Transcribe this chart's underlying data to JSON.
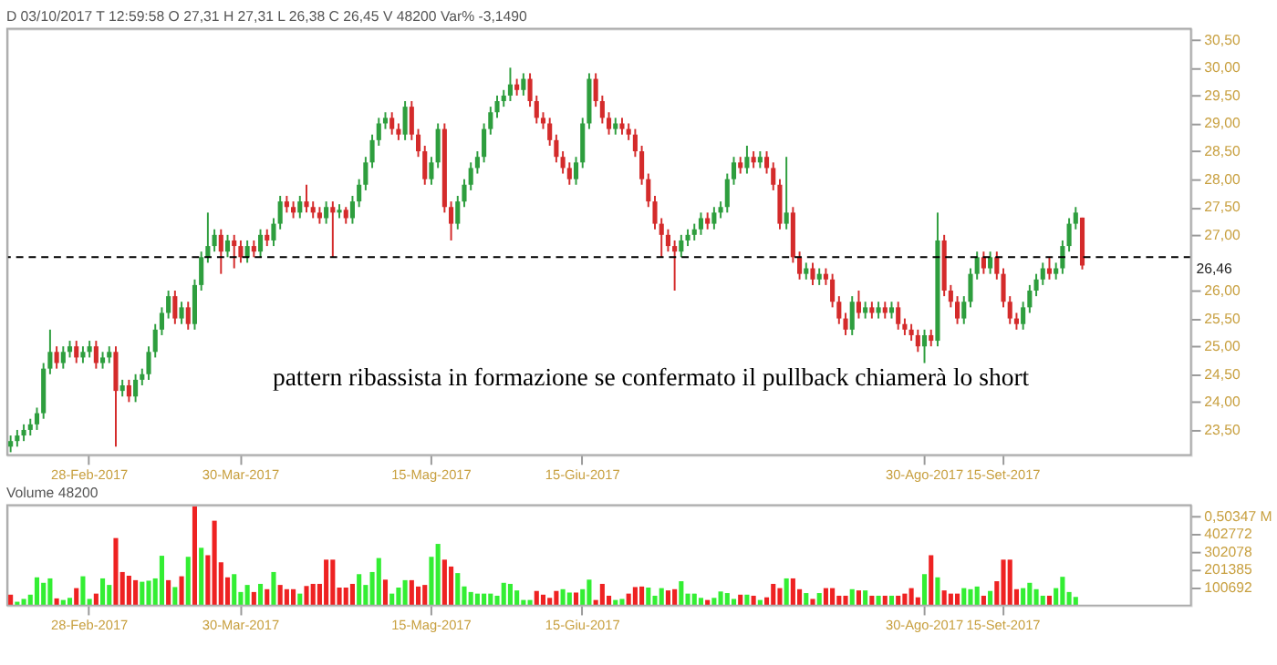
{
  "chart_data": [
    {
      "type": "candlestick",
      "subtitle": "D 03/10/2017   T 12:59:58   O 27,31   H 27,31   L 26,38   C 26,45   V 48200   Var% -3,1490",
      "categories": [
        null,
        null,
        null,
        null,
        null,
        null,
        null,
        null,
        null,
        null,
        null,
        null,
        "28-Feb-2017",
        null,
        null,
        null,
        null,
        null,
        null,
        null,
        null,
        null,
        null,
        null,
        null,
        null,
        null,
        null,
        null,
        null,
        null,
        null,
        null,
        null,
        null,
        "30-Mar-2017",
        null,
        null,
        null,
        null,
        null,
        null,
        null,
        null,
        null,
        null,
        null,
        null,
        null,
        null,
        null,
        null,
        null,
        null,
        null,
        null,
        null,
        null,
        null,
        null,
        null,
        null,
        null,
        null,
        "15-Mag-2017",
        null,
        null,
        null,
        null,
        null,
        null,
        null,
        null,
        null,
        null,
        null,
        null,
        null,
        null,
        null,
        null,
        null,
        null,
        null,
        null,
        null,
        null,
        "15-Giu-2017",
        null,
        null,
        null,
        null,
        null,
        null,
        null,
        null,
        null,
        null,
        null,
        null,
        null,
        null,
        null,
        null,
        null,
        null,
        null,
        null,
        null,
        null,
        null,
        null,
        null,
        null,
        null,
        null,
        null,
        null,
        null,
        null,
        null,
        null,
        null,
        null,
        null,
        null,
        null,
        null,
        null,
        null,
        null,
        null,
        null,
        null,
        null,
        null,
        null,
        null,
        null,
        "30-Ago-2017",
        null,
        null,
        null,
        null,
        null,
        null,
        null,
        null,
        null,
        null,
        null,
        "15-Set-2017",
        null,
        null,
        null,
        null,
        null,
        null,
        null,
        null,
        null,
        null,
        null,
        null,
        null,
        null,
        null,
        null,
        null,
        null,
        null,
        null,
        null,
        null,
        null,
        null,
        null,
        null,
        null,
        null
      ],
      "ohlc": [
        [
          23.2,
          23.4,
          23.1,
          23.3
        ],
        [
          23.3,
          23.5,
          23.2,
          23.4
        ],
        [
          23.4,
          23.6,
          23.3,
          23.5
        ],
        [
          23.5,
          23.7,
          23.4,
          23.6
        ],
        [
          23.6,
          23.9,
          23.5,
          23.8
        ],
        [
          23.8,
          24.7,
          23.7,
          24.6
        ],
        [
          24.6,
          25.3,
          24.5,
          24.9
        ],
        [
          24.9,
          25.0,
          24.6,
          24.7
        ],
        [
          24.7,
          25.0,
          24.6,
          24.9
        ],
        [
          24.9,
          25.1,
          24.8,
          25.0
        ],
        [
          25.0,
          25.1,
          24.7,
          24.8
        ],
        [
          24.8,
          25.0,
          24.7,
          24.9
        ],
        [
          24.9,
          25.1,
          24.8,
          25.0
        ],
        [
          25.0,
          25.1,
          24.6,
          24.7
        ],
        [
          24.7,
          24.9,
          24.6,
          24.8
        ],
        [
          24.8,
          25.0,
          24.7,
          24.9
        ],
        [
          24.9,
          25.0,
          23.2,
          24.2
        ],
        [
          24.2,
          24.4,
          24.1,
          24.3
        ],
        [
          24.3,
          24.4,
          24.0,
          24.1
        ],
        [
          24.1,
          24.5,
          24.0,
          24.4
        ],
        [
          24.4,
          24.6,
          24.3,
          24.5
        ],
        [
          24.5,
          25.0,
          24.4,
          24.9
        ],
        [
          24.9,
          25.4,
          24.8,
          25.3
        ],
        [
          25.3,
          25.7,
          25.2,
          25.6
        ],
        [
          25.6,
          26.0,
          25.5,
          25.9
        ],
        [
          25.9,
          26.0,
          25.4,
          25.5
        ],
        [
          25.5,
          25.8,
          25.4,
          25.7
        ],
        [
          25.7,
          25.8,
          25.3,
          25.4
        ],
        [
          25.4,
          26.2,
          25.3,
          26.1
        ],
        [
          26.1,
          26.7,
          26.0,
          26.6
        ],
        [
          26.6,
          27.4,
          26.5,
          26.8
        ],
        [
          26.8,
          27.1,
          26.7,
          27.0
        ],
        [
          27.0,
          27.1,
          26.3,
          26.7
        ],
        [
          26.7,
          27.0,
          26.6,
          26.9
        ],
        [
          26.9,
          27.0,
          26.4,
          26.8
        ],
        [
          26.8,
          26.9,
          26.5,
          26.6
        ],
        [
          26.6,
          26.9,
          26.5,
          26.8
        ],
        [
          26.8,
          26.9,
          26.6,
          26.7
        ],
        [
          26.7,
          27.1,
          26.6,
          27.0
        ],
        [
          27.0,
          27.1,
          26.8,
          26.9
        ],
        [
          26.9,
          27.3,
          26.8,
          27.2
        ],
        [
          27.2,
          27.7,
          27.1,
          27.6
        ],
        [
          27.6,
          27.7,
          27.4,
          27.5
        ],
        [
          27.5,
          27.6,
          27.3,
          27.4
        ],
        [
          27.4,
          27.7,
          27.3,
          27.6
        ],
        [
          27.6,
          27.9,
          27.4,
          27.5
        ],
        [
          27.5,
          27.6,
          27.3,
          27.4
        ],
        [
          27.4,
          27.5,
          27.2,
          27.3
        ],
        [
          27.3,
          27.6,
          27.2,
          27.5
        ],
        [
          27.5,
          27.6,
          26.6,
          27.4
        ],
        [
          27.4,
          27.55,
          27.3,
          27.45
        ],
        [
          27.45,
          27.5,
          27.2,
          27.3
        ],
        [
          27.3,
          27.7,
          27.2,
          27.6
        ],
        [
          27.6,
          28.0,
          27.5,
          27.9
        ],
        [
          27.9,
          28.4,
          27.8,
          28.3
        ],
        [
          28.3,
          28.8,
          28.2,
          28.7
        ],
        [
          28.7,
          29.1,
          28.6,
          29.0
        ],
        [
          29.0,
          29.2,
          28.9,
          29.1
        ],
        [
          29.1,
          29.2,
          28.8,
          28.9
        ],
        [
          28.9,
          29.0,
          28.7,
          28.8
        ],
        [
          28.8,
          29.4,
          28.7,
          29.3
        ],
        [
          29.3,
          29.4,
          28.7,
          28.8
        ],
        [
          28.8,
          28.9,
          28.4,
          28.5
        ],
        [
          28.5,
          28.6,
          27.9,
          28.0
        ],
        [
          28.0,
          28.4,
          27.9,
          28.3
        ],
        [
          28.3,
          29.0,
          28.2,
          28.9
        ],
        [
          28.9,
          29.0,
          27.4,
          27.5
        ],
        [
          27.5,
          27.6,
          26.9,
          27.2
        ],
        [
          27.2,
          27.7,
          27.1,
          27.6
        ],
        [
          27.6,
          28.0,
          27.5,
          27.9
        ],
        [
          27.9,
          28.3,
          27.8,
          28.2
        ],
        [
          28.2,
          28.5,
          28.1,
          28.4
        ],
        [
          28.4,
          29.0,
          28.3,
          28.9
        ],
        [
          28.9,
          29.3,
          28.8,
          29.2
        ],
        [
          29.2,
          29.5,
          29.1,
          29.4
        ],
        [
          29.4,
          29.6,
          29.3,
          29.5
        ],
        [
          29.5,
          30.0,
          29.4,
          29.7
        ],
        [
          29.7,
          29.8,
          29.5,
          29.6
        ],
        [
          29.6,
          29.9,
          29.5,
          29.8
        ],
        [
          29.8,
          29.9,
          29.3,
          29.4
        ],
        [
          29.4,
          29.5,
          29.0,
          29.1
        ],
        [
          29.1,
          29.2,
          28.9,
          29.0
        ],
        [
          29.0,
          29.1,
          28.6,
          28.7
        ],
        [
          28.7,
          28.8,
          28.3,
          28.4
        ],
        [
          28.4,
          28.5,
          28.1,
          28.2
        ],
        [
          28.2,
          28.3,
          27.9,
          28.0
        ],
        [
          28.0,
          28.4,
          27.9,
          28.3
        ],
        [
          28.3,
          29.1,
          28.2,
          29.0
        ],
        [
          29.0,
          29.9,
          28.9,
          29.8
        ],
        [
          29.8,
          29.9,
          29.3,
          29.4
        ],
        [
          29.4,
          29.5,
          29.0,
          29.1
        ],
        [
          29.1,
          29.2,
          28.8,
          28.9
        ],
        [
          28.9,
          29.1,
          28.8,
          29.0
        ],
        [
          29.0,
          29.1,
          28.8,
          28.9
        ],
        [
          28.9,
          29.0,
          28.7,
          28.8
        ],
        [
          28.8,
          28.9,
          28.4,
          28.5
        ],
        [
          28.5,
          28.6,
          27.9,
          28.0
        ],
        [
          28.0,
          28.1,
          27.5,
          27.6
        ],
        [
          27.6,
          27.7,
          27.1,
          27.2
        ],
        [
          27.2,
          27.3,
          26.6,
          27.0
        ],
        [
          27.0,
          27.1,
          26.7,
          26.8
        ],
        [
          26.8,
          26.9,
          26.0,
          26.7
        ],
        [
          26.7,
          27.0,
          26.6,
          26.9
        ],
        [
          26.9,
          27.1,
          26.8,
          27.0
        ],
        [
          27.0,
          27.2,
          26.9,
          27.1
        ],
        [
          27.1,
          27.4,
          27.0,
          27.3
        ],
        [
          27.3,
          27.4,
          27.1,
          27.2
        ],
        [
          27.2,
          27.5,
          27.1,
          27.4
        ],
        [
          27.4,
          27.6,
          27.3,
          27.5
        ],
        [
          27.5,
          28.1,
          27.4,
          28.0
        ],
        [
          28.0,
          28.4,
          27.9,
          28.3
        ],
        [
          28.3,
          28.4,
          28.1,
          28.2
        ],
        [
          28.2,
          28.6,
          28.1,
          28.4
        ],
        [
          28.4,
          28.5,
          28.2,
          28.3
        ],
        [
          28.3,
          28.5,
          28.2,
          28.4
        ],
        [
          28.4,
          28.5,
          28.1,
          28.2
        ],
        [
          28.2,
          28.3,
          27.8,
          27.9
        ],
        [
          27.9,
          28.0,
          27.1,
          27.2
        ],
        [
          27.2,
          28.4,
          27.1,
          27.4
        ],
        [
          27.4,
          27.5,
          26.5,
          26.6
        ],
        [
          26.6,
          26.7,
          26.2,
          26.3
        ],
        [
          26.3,
          26.5,
          26.2,
          26.4
        ],
        [
          26.4,
          26.5,
          26.1,
          26.2
        ],
        [
          26.2,
          26.4,
          26.1,
          26.3
        ],
        [
          26.3,
          26.4,
          26.1,
          26.2
        ],
        [
          26.2,
          26.3,
          25.7,
          25.8
        ],
        [
          25.8,
          25.9,
          25.4,
          25.5
        ],
        [
          25.5,
          25.6,
          25.2,
          25.3
        ],
        [
          25.3,
          25.9,
          25.2,
          25.8
        ],
        [
          25.8,
          26.0,
          25.5,
          25.6
        ],
        [
          25.6,
          25.8,
          25.5,
          25.7
        ],
        [
          25.7,
          25.8,
          25.5,
          25.6
        ],
        [
          25.6,
          25.8,
          25.5,
          25.7
        ],
        [
          25.7,
          25.8,
          25.5,
          25.6
        ],
        [
          25.6,
          25.8,
          25.5,
          25.7
        ],
        [
          25.7,
          25.8,
          25.3,
          25.4
        ],
        [
          25.4,
          25.5,
          25.2,
          25.3
        ],
        [
          25.3,
          25.4,
          25.1,
          25.2
        ],
        [
          25.2,
          25.3,
          24.9,
          25.0
        ],
        [
          25.0,
          25.3,
          24.7,
          25.2
        ],
        [
          25.2,
          25.3,
          25.0,
          25.1
        ],
        [
          25.1,
          27.4,
          25.0,
          26.9
        ],
        [
          26.9,
          27.0,
          25.9,
          26.0
        ],
        [
          26.0,
          26.1,
          25.7,
          25.8
        ],
        [
          25.8,
          25.9,
          25.4,
          25.5
        ],
        [
          25.5,
          25.9,
          25.4,
          25.8
        ],
        [
          25.8,
          26.4,
          25.7,
          26.3
        ],
        [
          26.3,
          26.7,
          26.2,
          26.6
        ],
        [
          26.6,
          26.7,
          26.3,
          26.4
        ],
        [
          26.4,
          26.7,
          26.3,
          26.6
        ],
        [
          26.6,
          26.7,
          26.2,
          26.3
        ],
        [
          26.3,
          26.4,
          25.7,
          25.8
        ],
        [
          25.8,
          25.9,
          25.4,
          25.5
        ],
        [
          25.5,
          25.6,
          25.3,
          25.4
        ],
        [
          25.4,
          25.8,
          25.3,
          25.7
        ],
        [
          25.7,
          26.1,
          25.6,
          26.0
        ],
        [
          26.0,
          26.3,
          25.9,
          26.2
        ],
        [
          26.2,
          26.5,
          26.1,
          26.4
        ],
        [
          26.4,
          26.6,
          26.2,
          26.3
        ],
        [
          26.3,
          26.5,
          26.2,
          26.4
        ],
        [
          26.4,
          26.9,
          26.3,
          26.8
        ],
        [
          26.8,
          27.3,
          26.7,
          27.2
        ],
        [
          27.2,
          27.5,
          27.1,
          27.4
        ],
        [
          27.31,
          27.31,
          26.38,
          26.45
        ],
        null,
        null,
        null,
        null,
        null,
        null,
        null,
        null,
        null,
        null,
        null,
        null,
        null,
        null,
        null,
        null
      ],
      "colors": [
        "#2e9e3e",
        "#2e9e3e",
        "#2e9e3e",
        "#2e9e3e",
        "#2e9e3e",
        "#2e9e3e",
        "#2e9e3e",
        "#d42b2b",
        "#2e9e3e",
        "#2e9e3e",
        "#d42b2b",
        "#2e9e3e",
        "#2e9e3e",
        "#d42b2b",
        "#2e9e3e",
        "#2e9e3e",
        "#d42b2b",
        "#2e9e3e",
        "#d42b2b",
        "#2e9e3e",
        "#2e9e3e",
        "#2e9e3e",
        "#2e9e3e",
        "#2e9e3e",
        "#2e9e3e",
        "#d42b2b",
        "#2e9e3e",
        "#d42b2b",
        "#2e9e3e",
        "#2e9e3e",
        "#2e9e3e",
        "#2e9e3e",
        "#d42b2b",
        "#2e9e3e",
        "#d42b2b",
        "#d42b2b",
        "#2e9e3e",
        "#d42b2b",
        "#2e9e3e",
        "#d42b2b",
        "#2e9e3e",
        "#2e9e3e",
        "#d42b2b",
        "#d42b2b",
        "#2e9e3e",
        "#d42b2b",
        "#d42b2b",
        "#d42b2b",
        "#2e9e3e",
        "#d42b2b",
        "#2e9e3e",
        "#d42b2b",
        "#2e9e3e",
        "#2e9e3e",
        "#2e9e3e",
        "#2e9e3e",
        "#2e9e3e",
        "#2e9e3e",
        "#d42b2b",
        "#d42b2b",
        "#2e9e3e",
        "#d42b2b",
        "#d42b2b",
        "#d42b2b",
        "#2e9e3e",
        "#2e9e3e",
        "#d42b2b",
        "#d42b2b",
        "#2e9e3e",
        "#2e9e3e",
        "#2e9e3e",
        "#2e9e3e",
        "#2e9e3e",
        "#2e9e3e",
        "#2e9e3e",
        "#2e9e3e",
        "#2e9e3e",
        "#d42b2b",
        "#2e9e3e",
        "#d42b2b",
        "#d42b2b",
        "#d42b2b",
        "#d42b2b",
        "#d42b2b",
        "#d42b2b",
        "#d42b2b",
        "#2e9e3e",
        "#2e9e3e",
        "#2e9e3e",
        "#d42b2b",
        "#d42b2b",
        "#d42b2b",
        "#2e9e3e",
        "#d42b2b",
        "#d42b2b",
        "#d42b2b",
        "#d42b2b",
        "#d42b2b",
        "#d42b2b",
        "#d42b2b",
        "#d42b2b",
        "#d42b2b",
        "#2e9e3e",
        "#2e9e3e",
        "#2e9e3e",
        "#2e9e3e",
        "#d42b2b",
        "#2e9e3e",
        "#2e9e3e",
        "#2e9e3e",
        "#2e9e3e",
        "#d42b2b",
        "#2e9e3e",
        "#d42b2b",
        "#2e9e3e",
        "#d42b2b",
        "#d42b2b",
        "#d42b2b",
        "#2e9e3e",
        "#d42b2b",
        "#d42b2b",
        "#2e9e3e",
        "#d42b2b",
        "#2e9e3e",
        "#d42b2b",
        "#d42b2b",
        "#d42b2b",
        "#d42b2b",
        "#2e9e3e",
        "#d42b2b",
        "#2e9e3e",
        "#d42b2b",
        "#2e9e3e",
        "#d42b2b",
        "#2e9e3e",
        "#d42b2b",
        "#d42b2b",
        "#d42b2b",
        "#d42b2b",
        "#2e9e3e",
        "#d42b2b",
        "#2e9e3e",
        "#d42b2b",
        "#d42b2b",
        "#d42b2b",
        "#2e9e3e",
        "#2e9e3e",
        "#2e9e3e",
        "#d42b2b",
        "#2e9e3e",
        "#d42b2b",
        "#d42b2b",
        "#d42b2b",
        "#d42b2b",
        "#2e9e3e",
        "#2e9e3e",
        "#2e9e3e",
        "#2e9e3e",
        "#d42b2b",
        "#2e9e3e",
        "#2e9e3e",
        "#2e9e3e",
        "#2e9e3e",
        "#d42b2b",
        null,
        null,
        null,
        null,
        null,
        null,
        null,
        null,
        null,
        null,
        null,
        null,
        null,
        null,
        null,
        null
      ],
      "ylim": [
        23.05,
        30.7
      ],
      "yticks": [
        {
          "value": 23.5,
          "label": "23,50"
        },
        {
          "value": 24.0,
          "label": "24,00"
        },
        {
          "value": 24.5,
          "label": "24,50"
        },
        {
          "value": 25.0,
          "label": "25,00"
        },
        {
          "value": 25.5,
          "label": "25,50"
        },
        {
          "value": 26.0,
          "label": "26,00"
        },
        {
          "value": 27.0,
          "label": "27,00"
        },
        {
          "value": 27.5,
          "label": "27,50"
        },
        {
          "value": 28.0,
          "label": "28,00"
        },
        {
          "value": 28.5,
          "label": "28,50"
        },
        {
          "value": 29.0,
          "label": "29,00"
        },
        {
          "value": 29.5,
          "label": "29,50"
        },
        {
          "value": 30.0,
          "label": "30,00"
        },
        {
          "value": 30.5,
          "label": "30,50"
        }
      ],
      "ref_lines": [
        {
          "axis": "y",
          "value": 26.6,
          "color": "#000000",
          "line_style": "dashed"
        }
      ],
      "annotations": [
        "pattern ribassista in formazione se confermato il pullback chiamerà lo short",
        "26,46"
      ],
      "grid": false
    },
    {
      "type": "bar",
      "annotations": [
        "Volume",
        "48200"
      ],
      "categories": [
        null,
        null,
        null,
        null,
        null,
        null,
        null,
        null,
        null,
        null,
        null,
        null,
        "28-Feb-2017",
        null,
        null,
        null,
        null,
        null,
        null,
        null,
        null,
        null,
        null,
        null,
        null,
        null,
        null,
        null,
        null,
        null,
        null,
        null,
        null,
        null,
        null,
        "30-Mar-2017",
        null,
        null,
        null,
        null,
        null,
        null,
        null,
        null,
        null,
        null,
        null,
        null,
        null,
        null,
        null,
        null,
        null,
        null,
        null,
        null,
        null,
        null,
        null,
        null,
        null,
        null,
        null,
        null,
        "15-Mag-2017",
        null,
        null,
        null,
        null,
        null,
        null,
        null,
        null,
        null,
        null,
        null,
        null,
        null,
        null,
        null,
        null,
        null,
        null,
        null,
        null,
        null,
        null,
        "15-Giu-2017",
        null,
        null,
        null,
        null,
        null,
        null,
        null,
        null,
        null,
        null,
        null,
        null,
        null,
        null,
        null,
        null,
        null,
        null,
        null,
        null,
        null,
        null,
        null,
        null,
        null,
        null,
        null,
        null,
        null,
        null,
        null,
        null,
        null,
        null,
        null,
        null,
        null,
        null,
        null,
        null,
        null,
        null,
        null,
        null,
        null,
        null,
        null,
        null,
        null,
        null,
        null,
        "30-Ago-2017",
        null,
        null,
        null,
        null,
        null,
        null,
        null,
        null,
        null,
        null,
        null,
        "15-Set-2017",
        null,
        null,
        null,
        null,
        null,
        null,
        null,
        null,
        null,
        null,
        null,
        null,
        null,
        null,
        null,
        null,
        null,
        null,
        null,
        null,
        null,
        null,
        null,
        null,
        null,
        null,
        null,
        null
      ],
      "values": [
        61000,
        21000,
        37000,
        61000,
        159000,
        128000,
        153000,
        40000,
        31000,
        43000,
        98000,
        165000,
        37000,
        67000,
        153000,
        116000,
        381000,
        189000,
        168000,
        143000,
        134000,
        140000,
        153000,
        281000,
        143000,
        104000,
        165000,
        275000,
        560000,
        326000,
        284000,
        479000,
        244000,
        159000,
        177000,
        76000,
        116000,
        76000,
        122000,
        92000,
        189000,
        116000,
        92000,
        92000,
        67000,
        110000,
        122000,
        122000,
        259000,
        259000,
        101000,
        101000,
        122000,
        177000,
        116000,
        189000,
        268000,
        146000,
        67000,
        101000,
        143000,
        143000,
        107000,
        116000,
        275000,
        348000,
        259000,
        220000,
        183000,
        107000,
        76000,
        67000,
        67000,
        67000,
        55000,
        128000,
        122000,
        85000,
        31000,
        31000,
        82000,
        61000,
        43000,
        82000,
        92000,
        73000,
        73000,
        92000,
        146000,
        31000,
        122000,
        55000,
        31000,
        37000,
        67000,
        104000,
        107000,
        101000,
        55000,
        98000,
        85000,
        92000,
        137000,
        67000,
        67000,
        43000,
        31000,
        43000,
        79000,
        70000,
        37000,
        61000,
        61000,
        55000,
        31000,
        46000,
        122000,
        98000,
        153000,
        153000,
        92000,
        70000,
        37000,
        70000,
        98000,
        98000,
        55000,
        55000,
        92000,
        85000,
        85000,
        55000,
        55000,
        55000,
        55000,
        55000,
        67000,
        98000,
        46000,
        177000,
        284000,
        159000,
        85000,
        67000,
        67000,
        98000,
        92000,
        107000,
        55000,
        82000,
        137000,
        259000,
        259000,
        92000,
        98000,
        128000,
        92000,
        55000,
        55000,
        98000,
        162000,
        76000,
        48200,
        null,
        null,
        null,
        null,
        null,
        null,
        null,
        null,
        null,
        null,
        null,
        null,
        null,
        null,
        null,
        null,
        null
      ],
      "colors": [
        "#ee2222",
        "#33ee33",
        "#33ee33",
        "#33ee33",
        "#33ee33",
        "#33ee33",
        "#33ee33",
        "#ee2222",
        "#33ee33",
        "#33ee33",
        "#ee2222",
        "#33ee33",
        "#33ee33",
        "#ee2222",
        "#33ee33",
        "#33ee33",
        "#ee2222",
        "#ee2222",
        "#ee2222",
        "#ee2222",
        "#33ee33",
        "#33ee33",
        "#33ee33",
        "#33ee33",
        "#ee2222",
        "#33ee33",
        "#ee2222",
        "#33ee33",
        "#ee2222",
        "#33ee33",
        "#ee2222",
        "#ee2222",
        "#ee2222",
        "#ee2222",
        "#33ee33",
        "#33ee33",
        "#33ee33",
        "#ee2222",
        "#33ee33",
        "#ee2222",
        "#33ee33",
        "#ee2222",
        "#ee2222",
        "#ee2222",
        "#33ee33",
        "#ee2222",
        "#ee2222",
        "#ee2222",
        "#ee2222",
        "#ee2222",
        "#ee2222",
        "#ee2222",
        "#ee2222",
        "#33ee33",
        "#33ee33",
        "#33ee33",
        "#33ee33",
        "#ee2222",
        "#33ee33",
        "#33ee33",
        "#33ee33",
        "#ee2222",
        "#ee2222",
        "#ee2222",
        "#33ee33",
        "#33ee33",
        "#ee2222",
        "#ee2222",
        "#33ee33",
        "#33ee33",
        "#33ee33",
        "#33ee33",
        "#33ee33",
        "#33ee33",
        "#33ee33",
        "#33ee33",
        "#33ee33",
        "#33ee33",
        "#33ee33",
        "#33ee33",
        "#ee2222",
        "#ee2222",
        "#ee2222",
        "#ee2222",
        "#33ee33",
        "#33ee33",
        "#ee2222",
        "#33ee33",
        "#33ee33",
        "#ee2222",
        "#ee2222",
        "#ee2222",
        "#33ee33",
        "#33ee33",
        "#ee2222",
        "#ee2222",
        "#ee2222",
        "#33ee33",
        "#33ee33",
        "#33ee33",
        "#ee2222",
        "#ee2222",
        "#33ee33",
        "#33ee33",
        "#33ee33",
        "#33ee33",
        "#ee2222",
        "#33ee33",
        "#33ee33",
        "#33ee33",
        "#33ee33",
        "#ee2222",
        "#33ee33",
        "#ee2222",
        "#33ee33",
        "#ee2222",
        "#ee2222",
        "#ee2222",
        "#33ee33",
        "#ee2222",
        "#ee2222",
        "#33ee33",
        "#ee2222",
        "#33ee33",
        "#ee2222",
        "#ee2222",
        "#ee2222",
        "#ee2222",
        "#33ee33",
        "#ee2222",
        "#33ee33",
        "#ee2222",
        "#33ee33",
        "#ee2222",
        "#33ee33",
        "#ee2222",
        "#ee2222",
        "#ee2222",
        "#ee2222",
        "#33ee33",
        "#ee2222",
        "#33ee33",
        "#ee2222",
        "#ee2222",
        "#ee2222",
        "#33ee33",
        "#33ee33",
        "#33ee33",
        "#ee2222",
        "#33ee33",
        "#ee2222",
        "#ee2222",
        "#ee2222",
        "#ee2222",
        "#33ee33",
        "#33ee33",
        "#33ee33",
        "#33ee33",
        "#ee2222",
        "#33ee33",
        "#33ee33",
        "#33ee33",
        "#33ee33",
        "#ee2222",
        null,
        null,
        null,
        null,
        null,
        null,
        null,
        null,
        null,
        null,
        null,
        null,
        null,
        null,
        null,
        null
      ],
      "ylim": [
        0,
        567000
      ],
      "yticks": [
        100692,
        201385,
        302078,
        402772,
        {
          "value": 503470,
          "label": "0,50347 M"
        }
      ],
      "grid": false
    }
  ]
}
